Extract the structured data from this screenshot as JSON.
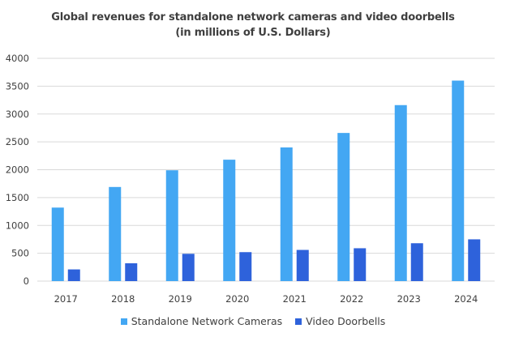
{
  "chart_data": {
    "type": "bar",
    "title_lines": [
      "Global revenues for standalone network cameras and video doorbells",
      "(in millions of U.S. Dollars)"
    ],
    "categories": [
      "2017",
      "2018",
      "2019",
      "2020",
      "2021",
      "2022",
      "2023",
      "2024"
    ],
    "series": [
      {
        "name": "Standalone Network Cameras",
        "color": "#43a7f3",
        "values": [
          1320,
          1690,
          1990,
          2180,
          2400,
          2660,
          3160,
          3600
        ]
      },
      {
        "name": "Video Doorbells",
        "color": "#2e62db",
        "values": [
          210,
          320,
          490,
          520,
          560,
          590,
          680,
          750
        ]
      }
    ],
    "yticks": [
      0,
      500,
      1000,
      1500,
      2000,
      2500,
      3000,
      3500,
      4000
    ],
    "ylim": [
      0,
      4000
    ],
    "grid": true,
    "legend_position": "bottom",
    "xlabel": "",
    "ylabel": ""
  }
}
